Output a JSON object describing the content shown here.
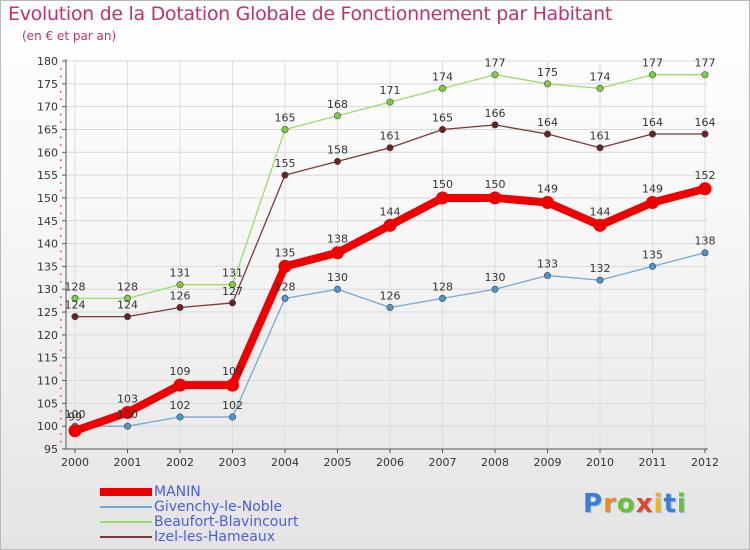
{
  "chart_data": {
    "type": "line",
    "title": "Evolution de la Dotation Globale de Fonctionnement par Habitant",
    "subtitle": "(en € et par an)",
    "xlabel": "",
    "ylabel": "",
    "x": [
      "2000",
      "2001",
      "2002",
      "2003",
      "2004",
      "2005",
      "2006",
      "2007",
      "2008",
      "2009",
      "2010",
      "2011",
      "2012"
    ],
    "ylim": [
      95,
      180
    ],
    "yticks": [
      95,
      100,
      105,
      110,
      115,
      120,
      125,
      130,
      135,
      140,
      145,
      150,
      155,
      160,
      165,
      170,
      175,
      180
    ],
    "grid": true,
    "legend_position": "bottom-left",
    "series": [
      {
        "name": "MANIN",
        "color": "#ee0000",
        "marker_color": "#ee0000",
        "emphasis": true,
        "values": [
          99,
          103,
          109,
          109,
          135,
          138,
          144,
          150,
          150,
          149,
          144,
          149,
          152
        ],
        "labels": [
          "99",
          "103",
          "109",
          "109",
          "135",
          "138",
          "144",
          "150",
          "150",
          "149",
          "144",
          "149",
          "152"
        ]
      },
      {
        "name": "Givenchy-le-Noble",
        "color": "#74a8d6",
        "marker_color": "#4d95d5",
        "emphasis": false,
        "values": [
          100,
          100,
          102,
          102,
          128,
          130,
          126,
          128,
          130,
          133,
          132,
          135,
          138
        ],
        "labels": [
          "100",
          "100",
          "102",
          "102",
          "128",
          "130",
          "126",
          "128",
          "130",
          "133",
          "132",
          "135",
          "138"
        ]
      },
      {
        "name": "Beaufort-Blavincourt",
        "color": "#9ddc68",
        "marker_color": "#7ccf3a",
        "emphasis": false,
        "values": [
          128,
          128,
          131,
          131,
          165,
          168,
          171,
          174,
          177,
          175,
          174,
          177,
          177
        ],
        "labels": [
          "128",
          "128",
          "131",
          "131",
          "165",
          "168",
          "171",
          "174",
          "177",
          "175",
          "174",
          "177",
          "177"
        ]
      },
      {
        "name": "Izel-les-Hameaux",
        "color": "#7a3a3a",
        "marker_color": "#6b2222",
        "emphasis": false,
        "values": [
          124,
          124,
          126,
          127,
          155,
          158,
          161,
          165,
          166,
          164,
          161,
          164,
          164
        ],
        "labels": [
          "124",
          "124",
          "126",
          "127",
          "155",
          "158",
          "161",
          "165",
          "166",
          "164",
          "161",
          "164",
          "164"
        ]
      }
    ]
  },
  "logo": {
    "letters": [
      "P",
      "r",
      "o",
      "x",
      "i",
      "t",
      "i"
    ],
    "colors": [
      "#3a7fd2",
      "#f08c1a",
      "#6cbf3a",
      "#e0452a",
      "#f2b21a",
      "#3a7fd2",
      "#6cbf3a"
    ]
  }
}
